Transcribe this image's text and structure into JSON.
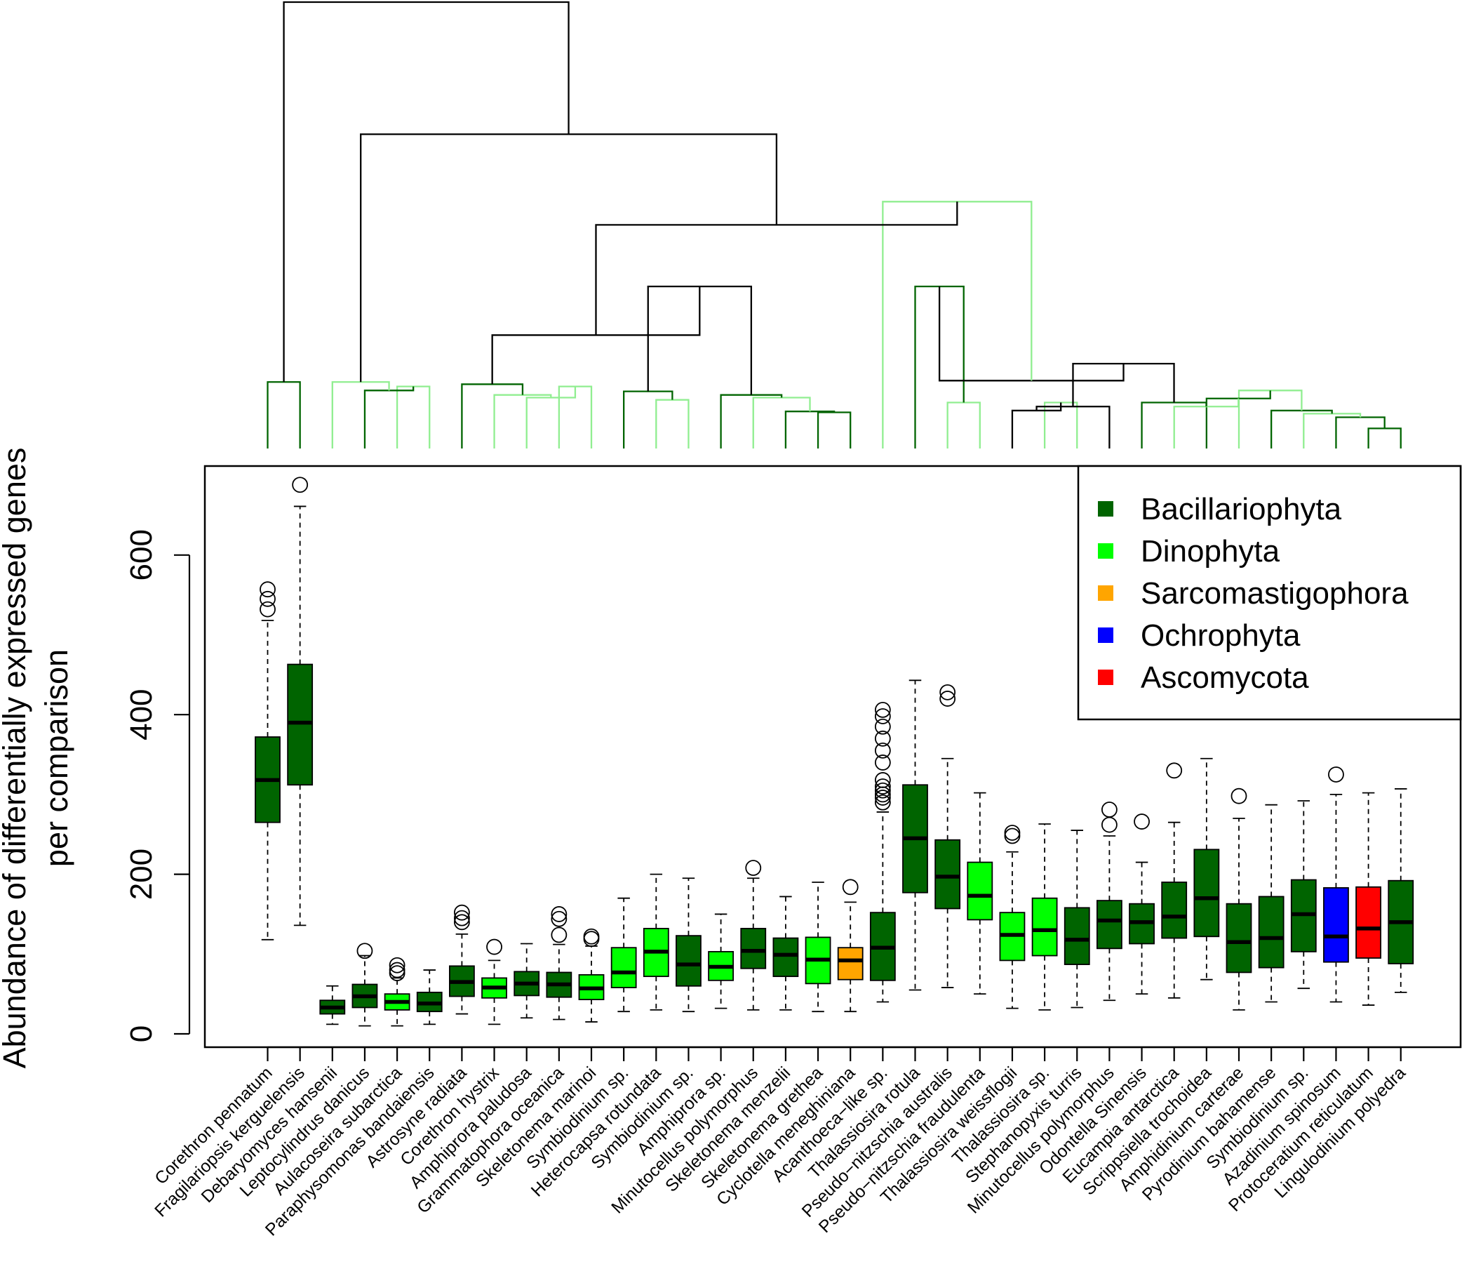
{
  "chart_data": {
    "type": "boxplot",
    "title": "",
    "xlabel": "",
    "ylabel_lines": [
      "Abundance of differentially expressed genes",
      "per comparison"
    ],
    "ylim": [
      -15,
      710
    ],
    "yticks": [
      0,
      200,
      400,
      600
    ],
    "ytick_labels": [
      "0",
      "200",
      "400",
      "600"
    ],
    "categories": [
      "Corethron pennatum",
      "Fragilariopsis kerguelensis",
      "Debaryomyces hansenii",
      "Leptocylindrus danicus",
      "Aulacoseira subarctica",
      "Paraphysomonas bandaiensis",
      "Astrosyne radiata",
      "Corethron hystrix",
      "Amphiprora paludosa",
      "Grammatophora oceanica",
      "Skeletonema marinoi",
      "Symbiodinium sp.",
      "Heterocapsa rotundata",
      "Symbiodinium sp.",
      "Amphiprora sp.",
      "Minutocellus polymorphus",
      "Skeletonema menzelii",
      "Skeletonema grethea",
      "Cyclotella meneghiniana",
      "Acanthoeca−like sp.",
      "Thalassiosira rotula",
      "Pseudo−nitzschia australis",
      "Pseudo−nitzschia fraudulenta",
      "Thalassiosira weissflogii",
      "Thalassiosira sp.",
      "Stephanopyxis turris",
      "Minutocellus polymorphus",
      "Odontella Sinensis",
      "Eucampia antarctica",
      "Scrippsiella trochoidea",
      "Amphidinium carterae",
      "Pyrodinium bahamense",
      "Symbiodinium sp.",
      "Azadinium spinosum",
      "Protoceratium reticulatum",
      "Lingulodinium polyedra"
    ],
    "box_phyla": [
      "Bacillariophyta",
      "Bacillariophyta",
      "Bacillariophyta",
      "Bacillariophyta",
      "Dinophyta",
      "Bacillariophyta",
      "Bacillariophyta",
      "Dinophyta",
      "Bacillariophyta",
      "Bacillariophyta",
      "Dinophyta",
      "Dinophyta",
      "Dinophyta",
      "Bacillariophyta",
      "Dinophyta",
      "Bacillariophyta",
      "Bacillariophyta",
      "Dinophyta",
      "Sarcomastigophora",
      "Bacillariophyta",
      "Bacillariophyta",
      "Bacillariophyta",
      "Dinophyta",
      "Dinophyta",
      "Dinophyta",
      "Bacillariophyta",
      "Bacillariophyta",
      "Bacillariophyta",
      "Bacillariophyta",
      "Bacillariophyta",
      "Bacillariophyta",
      "Bacillariophyta",
      "Bacillariophyta",
      "Ochrophyta",
      "Ascomycota",
      "Bacillariophyta"
    ],
    "series": [
      {
        "name": "Corethron pennatum",
        "whisker_low": 118,
        "q1": 265,
        "median": 318,
        "q3": 372,
        "whisker_high": 518,
        "outliers": [
          532,
          545,
          557
        ]
      },
      {
        "name": "Fragilariopsis kerguelensis",
        "whisker_low": 136,
        "q1": 312,
        "median": 390,
        "q3": 463,
        "whisker_high": 661,
        "outliers": [
          688
        ]
      },
      {
        "name": "Debaryomyces hansenii",
        "whisker_low": 12,
        "q1": 25,
        "median": 33,
        "q3": 42,
        "whisker_high": 60,
        "outliers": []
      },
      {
        "name": "Leptocylindrus danicus",
        "whisker_low": 10,
        "q1": 33,
        "median": 47,
        "q3": 62,
        "whisker_high": 98,
        "outliers": [
          104
        ]
      },
      {
        "name": "Aulacoseira subarctica",
        "whisker_low": 10,
        "q1": 30,
        "median": 40,
        "q3": 50,
        "whisker_high": 70,
        "outliers": [
          76,
          80,
          86
        ]
      },
      {
        "name": "Paraphysomonas bandaiensis",
        "whisker_low": 12,
        "q1": 28,
        "median": 38,
        "q3": 52,
        "whisker_high": 80,
        "outliers": []
      },
      {
        "name": "Astrosyne radiata",
        "whisker_low": 25,
        "q1": 47,
        "median": 65,
        "q3": 85,
        "whisker_high": 125,
        "outliers": [
          140,
          145,
          152
        ]
      },
      {
        "name": "Corethron hystrix",
        "whisker_low": 12,
        "q1": 45,
        "median": 58,
        "q3": 70,
        "whisker_high": 92,
        "outliers": [
          109
        ]
      },
      {
        "name": "Amphiprora paludosa",
        "whisker_low": 20,
        "q1": 48,
        "median": 63,
        "q3": 78,
        "whisker_high": 113,
        "outliers": []
      },
      {
        "name": "Grammatophora oceanica",
        "whisker_low": 18,
        "q1": 46,
        "median": 62,
        "q3": 77,
        "whisker_high": 112,
        "outliers": [
          124,
          144,
          150
        ]
      },
      {
        "name": "Skeletonema marinoi",
        "whisker_low": 15,
        "q1": 43,
        "median": 57,
        "q3": 74,
        "whisker_high": 110,
        "outliers": [
          119,
          122
        ]
      },
      {
        "name": "Symbiodinium sp.",
        "whisker_low": 28,
        "q1": 58,
        "median": 77,
        "q3": 108,
        "whisker_high": 170,
        "outliers": []
      },
      {
        "name": "Heterocapsa rotundata",
        "whisker_low": 30,
        "q1": 72,
        "median": 103,
        "q3": 132,
        "whisker_high": 200,
        "outliers": []
      },
      {
        "name": "Symbiodinium sp.",
        "whisker_low": 28,
        "q1": 60,
        "median": 87,
        "q3": 123,
        "whisker_high": 195,
        "outliers": []
      },
      {
        "name": "Amphiprora sp.",
        "whisker_low": 32,
        "q1": 67,
        "median": 84,
        "q3": 103,
        "whisker_high": 150,
        "outliers": []
      },
      {
        "name": "Minutocellus polymorphus",
        "whisker_low": 30,
        "q1": 82,
        "median": 104,
        "q3": 132,
        "whisker_high": 195,
        "outliers": [
          208
        ]
      },
      {
        "name": "Skeletonema menzelii",
        "whisker_low": 30,
        "q1": 72,
        "median": 99,
        "q3": 120,
        "whisker_high": 172,
        "outliers": []
      },
      {
        "name": "Skeletonema grethea",
        "whisker_low": 28,
        "q1": 63,
        "median": 93,
        "q3": 121,
        "whisker_high": 190,
        "outliers": []
      },
      {
        "name": "Cyclotella meneghiniana",
        "whisker_low": 28,
        "q1": 68,
        "median": 92,
        "q3": 108,
        "whisker_high": 165,
        "outliers": [
          184
        ]
      },
      {
        "name": "Acanthoeca−like sp.",
        "whisker_low": 40,
        "q1": 67,
        "median": 108,
        "q3": 152,
        "whisker_high": 278,
        "outliers": [
          290,
          296,
          300,
          305,
          310,
          318,
          340,
          355,
          370,
          385,
          398,
          406
        ]
      },
      {
        "name": "Thalassiosira rotula",
        "whisker_low": 55,
        "q1": 177,
        "median": 245,
        "q3": 312,
        "whisker_high": 443,
        "outliers": []
      },
      {
        "name": "Pseudo−nitzschia australis",
        "whisker_low": 58,
        "q1": 157,
        "median": 197,
        "q3": 243,
        "whisker_high": 345,
        "outliers": [
          420,
          428
        ]
      },
      {
        "name": "Pseudo−nitzschia fraudulenta",
        "whisker_low": 50,
        "q1": 143,
        "median": 173,
        "q3": 215,
        "whisker_high": 302,
        "outliers": []
      },
      {
        "name": "Thalassiosira weissflogii",
        "whisker_low": 32,
        "q1": 92,
        "median": 124,
        "q3": 152,
        "whisker_high": 228,
        "outliers": [
          248,
          252
        ]
      },
      {
        "name": "Thalassiosira sp.",
        "whisker_low": 30,
        "q1": 98,
        "median": 130,
        "q3": 170,
        "whisker_high": 263,
        "outliers": []
      },
      {
        "name": "Stephanopyxis turris",
        "whisker_low": 33,
        "q1": 87,
        "median": 118,
        "q3": 158,
        "whisker_high": 255,
        "outliers": []
      },
      {
        "name": "Minutocellus polymorphus",
        "whisker_low": 42,
        "q1": 107,
        "median": 142,
        "q3": 167,
        "whisker_high": 248,
        "outliers": [
          262,
          281
        ]
      },
      {
        "name": "Odontella Sinensis",
        "whisker_low": 50,
        "q1": 113,
        "median": 140,
        "q3": 163,
        "whisker_high": 215,
        "outliers": [
          266
        ]
      },
      {
        "name": "Eucampia antarctica",
        "whisker_low": 45,
        "q1": 120,
        "median": 147,
        "q3": 190,
        "whisker_high": 265,
        "outliers": [
          330
        ]
      },
      {
        "name": "Scrippsiella trochoidea",
        "whisker_low": 68,
        "q1": 122,
        "median": 170,
        "q3": 231,
        "whisker_high": 345,
        "outliers": []
      },
      {
        "name": "Amphidinium carterae",
        "whisker_low": 30,
        "q1": 77,
        "median": 115,
        "q3": 163,
        "whisker_high": 270,
        "outliers": [
          298
        ]
      },
      {
        "name": "Pyrodinium bahamense",
        "whisker_low": 40,
        "q1": 83,
        "median": 120,
        "q3": 172,
        "whisker_high": 287,
        "outliers": []
      },
      {
        "name": "Symbiodinium sp.",
        "whisker_low": 57,
        "q1": 103,
        "median": 150,
        "q3": 193,
        "whisker_high": 292,
        "outliers": []
      },
      {
        "name": "Azadinium spinosum",
        "whisker_low": 40,
        "q1": 90,
        "median": 122,
        "q3": 183,
        "whisker_high": 300,
        "outliers": [
          325
        ]
      },
      {
        "name": "Protoceratium reticulatum",
        "whisker_low": 36,
        "q1": 95,
        "median": 132,
        "q3": 184,
        "whisker_high": 302,
        "outliers": []
      },
      {
        "name": "Lingulodinium polyedra",
        "whisker_low": 52,
        "q1": 88,
        "median": 140,
        "q3": 192,
        "whisker_high": 307,
        "outliers": []
      }
    ],
    "legend": {
      "position": "top-right",
      "entries": [
        {
          "label": "Bacillariophyta",
          "color": "#006400"
        },
        {
          "label": "Dinophyta",
          "color": "#00ff00"
        },
        {
          "label": "Sarcomastigophora",
          "color": "#ffa500"
        },
        {
          "label": "Ochrophyta",
          "color": "#0000ff"
        },
        {
          "label": "Ascomycota",
          "color": "#ff0000"
        }
      ]
    },
    "dendrogram": {
      "description_text": "",
      "colors": {
        "black": "#000000",
        "dark": "#006400",
        "light": "#90ee90"
      },
      "heights": {
        "root": 100,
        "a": 91.6,
        "ab": 70.4,
        "b": 55.3,
        "bb": 50.1,
        "c": 36.3,
        "d": 25.4,
        "e": 19.0,
        "f": 15.2,
        "cp": 14.9,
        "g": 14.4,
        "g2": 14.1,
        "g3": 13.9,
        "h": 13.0,
        "i": 12.8,
        "h2": 12.0,
        "i2": 11.4,
        "j2": 11.2,
        "i3": 10.9,
        "k": 10.3,
        "i4": 10.3,
        "j3": 9.9,
        "j4": 9.7,
        "j": 9.4,
        "k2": 8.5,
        "l2": 8.3,
        "l3": 8.1,
        "l4": 7.8,
        "m": 7.5,
        "m2": 7.0,
        "n": 4.5
      },
      "nodes": [
        {
          "id": "cp",
          "left": 0,
          "right": 1,
          "color": "dark"
        },
        {
          "id": "l3",
          "left": 4,
          "right": 5,
          "color": "light"
        },
        {
          "id": "h2",
          "left": 3,
          "right": "l3",
          "color": "dark"
        },
        {
          "id": "f",
          "left": 2,
          "right": "h2",
          "color": "light"
        },
        {
          "id": "l2",
          "left": 9,
          "right": 10,
          "color": "light"
        },
        {
          "id": "j3",
          "left": 8,
          "right": "l2",
          "color": "light"
        },
        {
          "id": "i2",
          "left": 7,
          "right": "j3",
          "color": "light"
        },
        {
          "id": "g2",
          "left": 6,
          "right": "i2",
          "color": "dark"
        },
        {
          "id": "k",
          "left": 12,
          "right": 13,
          "color": "light"
        },
        {
          "id": "i",
          "left": 11,
          "right": "k",
          "color": "dark"
        },
        {
          "id": "m",
          "left": 17,
          "right": 18,
          "color": "dark"
        },
        {
          "id": "l",
          "left": 16,
          "right": "m",
          "color": "dark"
        },
        {
          "id": "j",
          "left": 15,
          "right": "l",
          "color": "light"
        },
        {
          "id": "g",
          "left": 14,
          "right": "j",
          "color": "dark"
        },
        {
          "id": "e",
          "left": "i",
          "right": "g",
          "color": "black"
        },
        {
          "id": "d",
          "left": "g2",
          "right": "e",
          "color": "black"
        },
        {
          "id": "k2",
          "left": 21,
          "right": 22,
          "color": "light"
        },
        {
          "id": "i3",
          "left": 20,
          "right": "k2",
          "color": "dark"
        },
        {
          "id": "l4",
          "left": 24,
          "right": 25,
          "color": "light"
        },
        {
          "id": "k3",
          "left": 23,
          "right": "l4",
          "color": "black"
        },
        {
          "id": "j4",
          "left": "k3",
          "right": 26,
          "color": "black"
        },
        {
          "id": "n",
          "left": 34,
          "right": 35,
          "color": "dark"
        },
        {
          "id": "m2",
          "left": 33,
          "right": "n",
          "color": "dark"
        },
        {
          "id": "l5",
          "left": 32,
          "right": "m2",
          "color": "light"
        },
        {
          "id": "k4",
          "left": 31,
          "right": "l5",
          "color": "dark"
        },
        {
          "id": "j5",
          "left": 30,
          "right": "k4",
          "color": "light"
        },
        {
          "id": "i5",
          "left": 29,
          "right": "j5",
          "color": "dark"
        },
        {
          "id": "h3",
          "left": 28,
          "right": "i5",
          "color": "light"
        },
        {
          "id": "g3",
          "left": 27,
          "right": "h3",
          "color": "dark"
        },
        {
          "id": "f2",
          "left": "j4",
          "right": "g3",
          "color": "black"
        },
        {
          "id": "e2",
          "left": "i3",
          "right": "f2",
          "color": "black"
        },
        {
          "id": "d2",
          "left": 19,
          "right": "e2",
          "color": "light"
        },
        {
          "id": "c",
          "left": "d",
          "right": "d2",
          "color": "black"
        },
        {
          "id": "b",
          "left": "f",
          "right": "c",
          "color": "black"
        },
        {
          "id": "a",
          "left": "cp",
          "right": "b",
          "color": "black"
        }
      ],
      "node_height_keys": {
        "cp": "cp",
        "l3": "g3",
        "h2": "h",
        "f": "cp",
        "l2": "g3",
        "j3": "i2",
        "i2": "h2",
        "g2": "g",
        "k": "i3",
        "i": "i",
        "m": "l3",
        "l": "l2",
        "j": "i2",
        "g": "h2",
        "e": "c",
        "d": "d",
        "k2": "k",
        "i3": "c",
        "l4": "k",
        "k3": "k2",
        "j4": "j",
        "n": "n",
        "m2": "m2",
        "l5": "l4",
        "k4": "k2",
        "j5": "h",
        "i5": "j2",
        "h3": "j",
        "g3": "i4",
        "f2": "e",
        "e2": "f",
        "d2": "b",
        "c": "bb",
        "b": "ab",
        "a": "root"
      }
    }
  }
}
